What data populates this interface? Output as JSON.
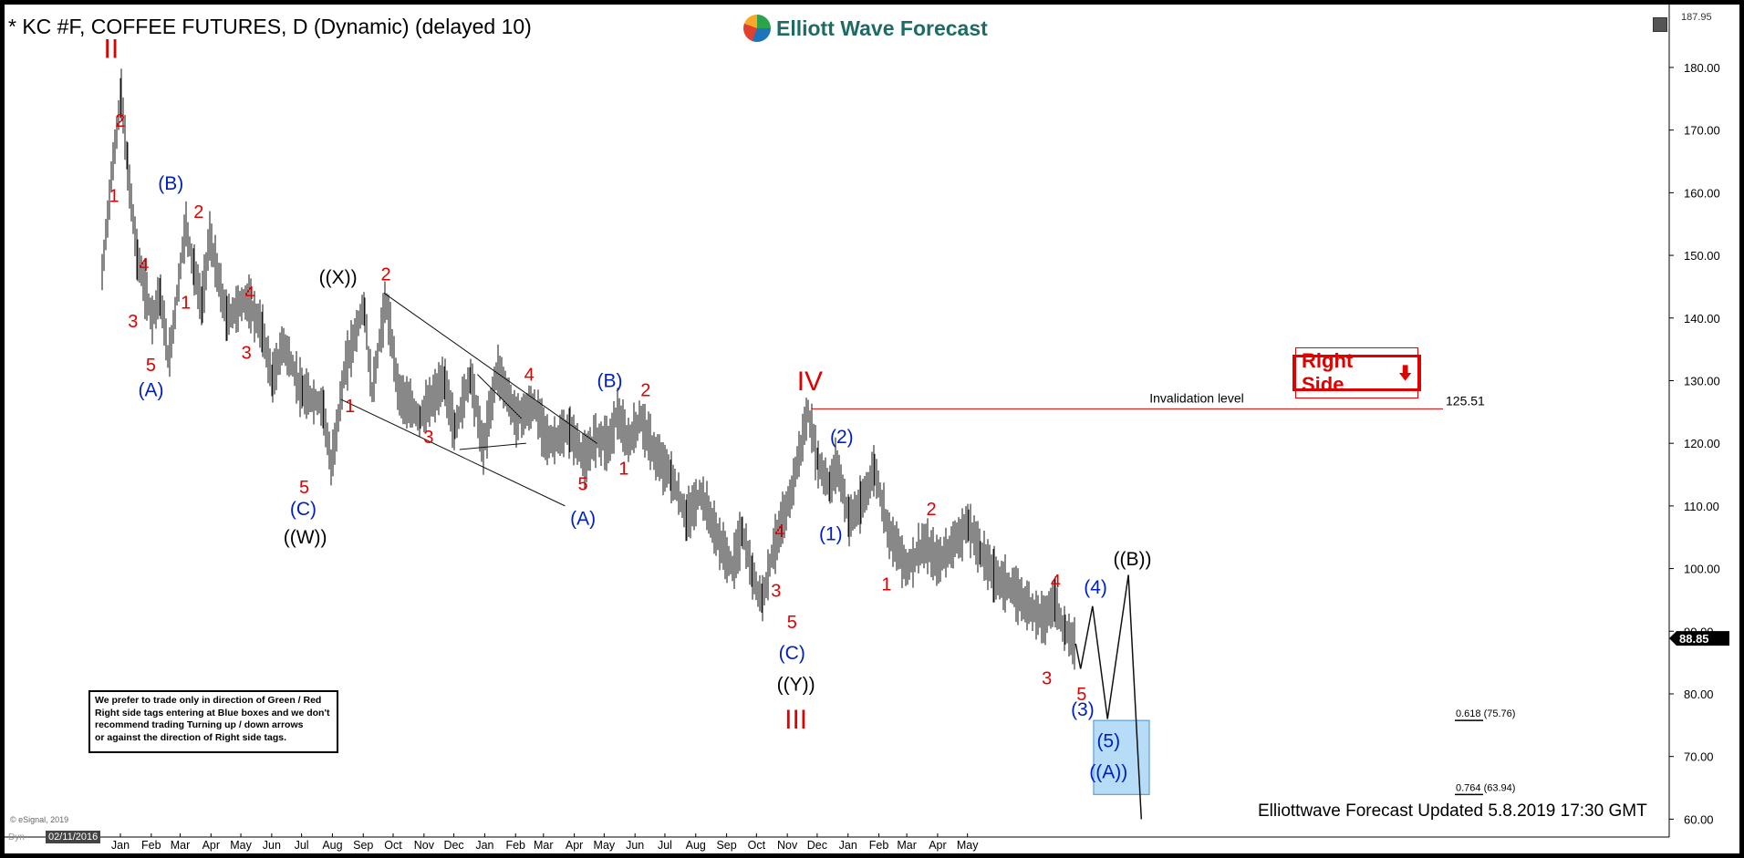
{
  "header": {
    "title": "* KC #F, COFFEE FUTURES, D (Dynamic) (delayed 10)",
    "brand": "Elliott Wave Forecast",
    "top_price": "187.95"
  },
  "colors": {
    "red": "#e00000",
    "blue": "#0020c0",
    "black": "#000000",
    "box": "#b6dcf7",
    "box_border": "#4a90c8"
  },
  "notice_lines": [
    "We prefer to trade only in direction of Green / Red",
    "Right side tags entering at Blue boxes and we don't",
    "recommend trading Turning up / down arrows",
    "or against the direction of Right side tags."
  ],
  "right_side_tag": {
    "label": "Right Side",
    "arrow": "down-arrow-icon"
  },
  "invalidation": {
    "label": "Invalidation level",
    "value": "125.51"
  },
  "fib": {
    "upper": "0.618 (75.76)",
    "lower": "0.764 (63.94)"
  },
  "current_price": "88.85",
  "footer": "Elliottwave Forecast Updated 5.8.2019 17:30 GMT",
  "copyright": "© eSignal, 2019",
  "dyn_label": "Dyn",
  "date_badge": "02/11/2016",
  "chart_data": {
    "type": "line",
    "title": "* KC #F, COFFEE FUTURES, D (Dynamic) (delayed 10)",
    "ylim": [
      57,
      188
    ],
    "y_ticks": [
      60,
      70,
      80,
      90,
      100,
      110,
      120,
      130,
      140,
      150,
      160,
      170,
      180
    ],
    "x_ticks": [
      "Jan",
      "Feb",
      "Mar",
      "Apr",
      "May",
      "Jun",
      "Jul",
      "Aug",
      "Sep",
      "Oct",
      "Nov",
      "Dec",
      "Jan",
      "Feb",
      "Mar",
      "Apr",
      "May",
      "Jun",
      "Jul",
      "Aug",
      "Sep",
      "Oct",
      "Nov",
      "Dec",
      "Jan",
      "Feb",
      "Mar",
      "Apr",
      "May"
    ],
    "price_path": [
      [
        "2016-01-01",
        147
      ],
      [
        "2016-01-10",
        162
      ],
      [
        "2016-01-20",
        176
      ],
      [
        "2016-01-26",
        165
      ],
      [
        "2016-02-05",
        150
      ],
      [
        "2016-02-20",
        140
      ],
      [
        "2016-02-28",
        144
      ],
      [
        "2016-03-08",
        133
      ],
      [
        "2016-03-25",
        155
      ],
      [
        "2016-04-02",
        148
      ],
      [
        "2016-04-10",
        142
      ],
      [
        "2016-04-18",
        153
      ],
      [
        "2016-05-05",
        140
      ],
      [
        "2016-05-25",
        143
      ],
      [
        "2016-06-10",
        138
      ],
      [
        "2016-06-20",
        130
      ],
      [
        "2016-07-01",
        136
      ],
      [
        "2016-07-20",
        128
      ],
      [
        "2016-08-10",
        126
      ],
      [
        "2016-08-18",
        116
      ],
      [
        "2016-09-01",
        132
      ],
      [
        "2016-09-20",
        142
      ],
      [
        "2016-09-28",
        128
      ],
      [
        "2016-10-12",
        143
      ],
      [
        "2016-10-25",
        128
      ],
      [
        "2016-11-15",
        124
      ],
      [
        "2016-12-10",
        130
      ],
      [
        "2016-12-20",
        122
      ],
      [
        "2017-01-05",
        131
      ],
      [
        "2017-01-18",
        119
      ],
      [
        "2017-02-01",
        132
      ],
      [
        "2017-02-20",
        124
      ],
      [
        "2017-03-10",
        126
      ],
      [
        "2017-03-25",
        120
      ],
      [
        "2017-04-15",
        122
      ],
      [
        "2017-05-01",
        117
      ],
      [
        "2017-05-10",
        121
      ],
      [
        "2017-05-25",
        120
      ],
      [
        "2017-06-01",
        125
      ],
      [
        "2017-06-12",
        120
      ],
      [
        "2017-06-25",
        124
      ],
      [
        "2017-07-10",
        118
      ],
      [
        "2017-07-25",
        115
      ],
      [
        "2017-08-10",
        108
      ],
      [
        "2017-08-25",
        112
      ],
      [
        "2017-09-10",
        105
      ],
      [
        "2017-09-25",
        100
      ],
      [
        "2017-10-05",
        106
      ],
      [
        "2017-10-15",
        99
      ],
      [
        "2017-10-25",
        95
      ],
      [
        "2017-11-05",
        103
      ],
      [
        "2017-11-20",
        110
      ],
      [
        "2017-12-01",
        118
      ],
      [
        "2017-12-10",
        125
      ],
      [
        "2017-12-20",
        117
      ],
      [
        "2018-01-01",
        113
      ],
      [
        "2018-01-08",
        117
      ],
      [
        "2018-01-20",
        108
      ],
      [
        "2018-02-01",
        110
      ],
      [
        "2018-02-15",
        116
      ],
      [
        "2018-03-01",
        106
      ],
      [
        "2018-03-20",
        100
      ],
      [
        "2018-04-05",
        104
      ],
      [
        "2018-04-20",
        101
      ],
      [
        "2018-05-10",
        105
      ],
      [
        "2018-05-20",
        107
      ],
      [
        "2018-06-01",
        103
      ],
      [
        "2018-06-15",
        99
      ],
      [
        "2018-07-01",
        97
      ],
      [
        "2018-07-20",
        94
      ],
      [
        "2018-08-05",
        92
      ],
      [
        "2018-08-15",
        95
      ],
      [
        "2018-08-25",
        90
      ],
      [
        "2018-09-05",
        88
      ]
    ],
    "projection": [
      [
        "2018-09-05",
        88
      ],
      [
        "2018-09-10",
        84
      ],
      [
        "2018-09-22",
        94
      ],
      [
        "2018-10-07",
        76
      ],
      [
        "2018-10-28",
        99
      ],
      [
        "2018-11-10",
        60
      ]
    ],
    "target_zone": {
      "low": 63.94,
      "high": 75.76,
      "start": "2018-09-23",
      "end": "2018-11-18"
    },
    "invalidation_level": 125.51,
    "labels": [
      {
        "t": "II",
        "d": "2016-01-10",
        "y": 181.5,
        "c": "red",
        "s": 30,
        "f": "serif"
      },
      {
        "t": "2",
        "d": "2016-01-19",
        "y": 170.5,
        "c": "red",
        "s": 20
      },
      {
        "t": "1",
        "d": "2016-01-13",
        "y": 158.5,
        "c": "red",
        "s": 20
      },
      {
        "t": "(B)",
        "d": "2016-03-10",
        "y": 160.5,
        "c": "blue",
        "s": 21
      },
      {
        "t": "2",
        "d": "2016-04-07",
        "y": 156,
        "c": "red",
        "s": 20
      },
      {
        "t": "4",
        "d": "2016-02-12",
        "y": 147.5,
        "c": "red",
        "s": 20
      },
      {
        "t": "3",
        "d": "2016-02-01",
        "y": 138.5,
        "c": "red",
        "s": 20
      },
      {
        "t": "1",
        "d": "2016-03-25",
        "y": 141.5,
        "c": "red",
        "s": 20
      },
      {
        "t": "5",
        "d": "2016-02-19",
        "y": 131.5,
        "c": "red",
        "s": 20
      },
      {
        "t": "(A)",
        "d": "2016-02-19",
        "y": 127.5,
        "c": "blue",
        "s": 21
      },
      {
        "t": "4",
        "d": "2016-05-28",
        "y": 143,
        "c": "red",
        "s": 20
      },
      {
        "t": "3",
        "d": "2016-05-25",
        "y": 133.5,
        "c": "red",
        "s": 20
      },
      {
        "t": "((X))",
        "d": "2016-08-25",
        "y": 145.5,
        "c": "black",
        "s": 21
      },
      {
        "t": "2",
        "d": "2016-10-12",
        "y": 146,
        "c": "red",
        "s": 20
      },
      {
        "t": "5",
        "d": "2016-07-22",
        "y": 112,
        "c": "red",
        "s": 20
      },
      {
        "t": "(C)",
        "d": "2016-07-21",
        "y": 108.5,
        "c": "blue",
        "s": 21
      },
      {
        "t": "((W))",
        "d": "2016-07-23",
        "y": 104,
        "c": "black",
        "s": 21
      },
      {
        "t": "1",
        "d": "2016-09-06",
        "y": 125,
        "c": "red",
        "s": 20
      },
      {
        "t": "3",
        "d": "2016-11-24",
        "y": 120,
        "c": "red",
        "s": 20
      },
      {
        "t": "4",
        "d": "2017-03-05",
        "y": 130,
        "c": "red",
        "s": 20
      },
      {
        "t": "(B)",
        "d": "2017-05-25",
        "y": 129,
        "c": "blue",
        "s": 21
      },
      {
        "t": "2",
        "d": "2017-06-30",
        "y": 127.5,
        "c": "red",
        "s": 20
      },
      {
        "t": "5",
        "d": "2017-04-28",
        "y": 112.5,
        "c": "red",
        "s": 20
      },
      {
        "t": "1",
        "d": "2017-06-08",
        "y": 115,
        "c": "red",
        "s": 20
      },
      {
        "t": "(A)",
        "d": "2017-04-28",
        "y": 107,
        "c": "blue",
        "s": 21
      },
      {
        "t": "IV",
        "d": "2017-12-12",
        "y": 128.5,
        "c": "red",
        "s": 30,
        "f": "serif"
      },
      {
        "t": "(2)",
        "d": "2018-01-13",
        "y": 120,
        "c": "blue",
        "s": 21
      },
      {
        "t": "(1)",
        "d": "2018-01-02",
        "y": 104.5,
        "c": "blue",
        "s": 21
      },
      {
        "t": "4",
        "d": "2017-11-12",
        "y": 105,
        "c": "red",
        "s": 20
      },
      {
        "t": "3",
        "d": "2017-11-08",
        "y": 95.5,
        "c": "red",
        "s": 20
      },
      {
        "t": "5",
        "d": "2017-11-24",
        "y": 90.5,
        "c": "red",
        "s": 20
      },
      {
        "t": "(C)",
        "d": "2017-11-24",
        "y": 85.5,
        "c": "blue",
        "s": 21
      },
      {
        "t": "((Y))",
        "d": "2017-11-28",
        "y": 80.5,
        "c": "black",
        "s": 21
      },
      {
        "t": "III",
        "d": "2017-11-28",
        "y": 74.5,
        "c": "red",
        "s": 30,
        "f": "serif"
      },
      {
        "t": "2",
        "d": "2018-04-13",
        "y": 108.5,
        "c": "red",
        "s": 20
      },
      {
        "t": "1",
        "d": "2018-02-27",
        "y": 96.5,
        "c": "red",
        "s": 20
      },
      {
        "t": "4",
        "d": "2018-08-16",
        "y": 97,
        "c": "red",
        "s": 20
      },
      {
        "t": "(4)",
        "d": "2018-09-25",
        "y": 96,
        "c": "blue",
        "s": 21
      },
      {
        "t": "((B))",
        "d": "2018-11-01",
        "y": 100.5,
        "c": "black",
        "s": 21
      },
      {
        "t": "3",
        "d": "2018-08-07",
        "y": 81.5,
        "c": "red",
        "s": 20
      },
      {
        "t": "5",
        "d": "2018-09-11",
        "y": 79,
        "c": "red",
        "s": 20
      },
      {
        "t": "(3)",
        "d": "2018-09-12",
        "y": 76.5,
        "c": "blue",
        "s": 21
      },
      {
        "t": "(5)",
        "d": "2018-10-08",
        "y": 71.5,
        "c": "blue",
        "s": 21
      },
      {
        "t": "((A))",
        "d": "2018-10-08",
        "y": 66.5,
        "c": "blue",
        "s": 21
      }
    ],
    "trendlines": [
      {
        "from": [
          "2016-10-10",
          144
        ],
        "to": [
          "2017-05-12",
          120
        ]
      },
      {
        "from": [
          "2016-08-28",
          127
        ],
        "to": [
          "2017-04-10",
          110
        ]
      },
      {
        "from": [
          "2017-01-12",
          131
        ],
        "to": [
          "2017-02-25",
          124
        ]
      },
      {
        "from": [
          "2016-12-25",
          119
        ],
        "to": [
          "2017-03-02",
          120
        ]
      }
    ]
  }
}
